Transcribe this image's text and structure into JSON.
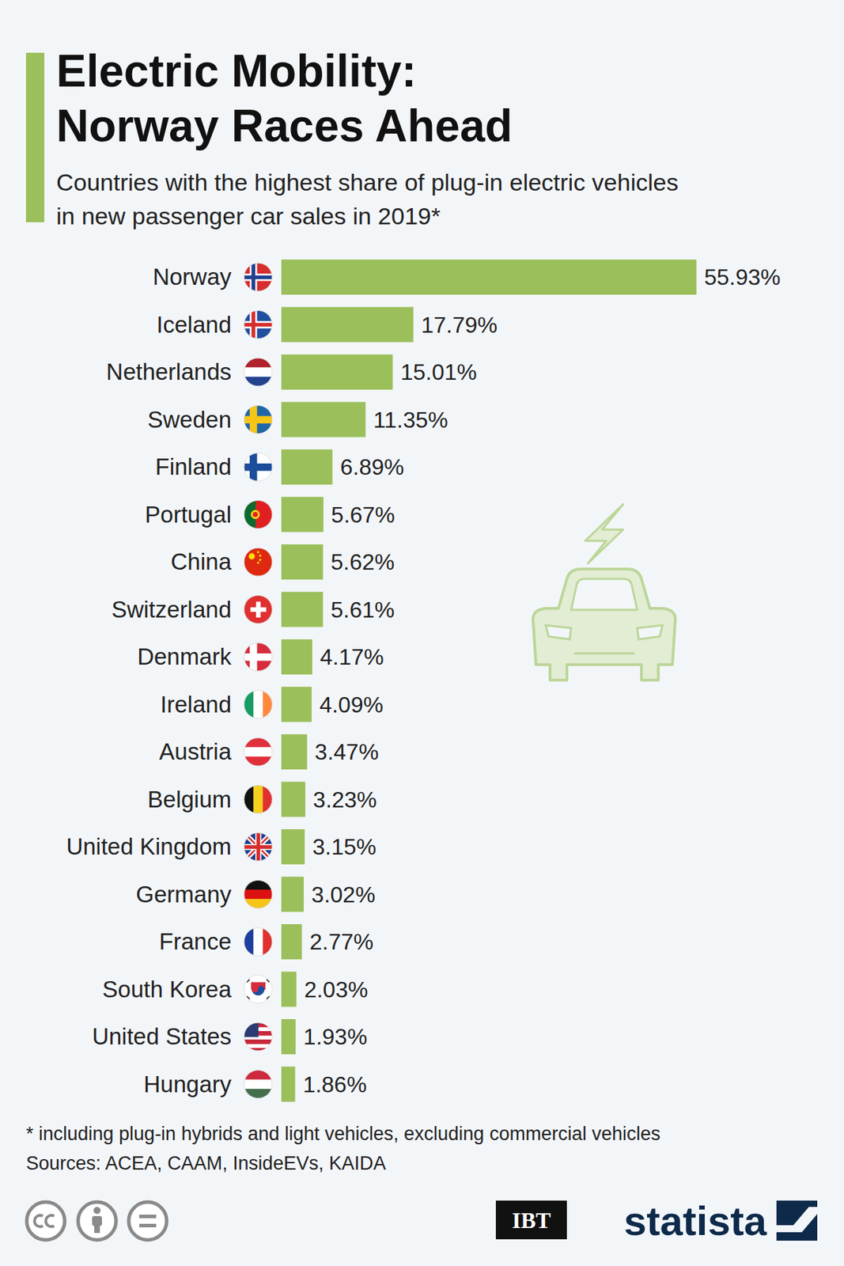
{
  "chart_data": {
    "type": "bar",
    "orientation": "horizontal",
    "title": [
      "Electric Mobility:",
      "Norway Races Ahead"
    ],
    "subtitle": [
      "Countries with the highest share of plug-in electric vehicles",
      "in new passenger car sales in 2019*"
    ],
    "categories": [
      "Norway",
      "Iceland",
      "Netherlands",
      "Sweden",
      "Finland",
      "Portugal",
      "China",
      "Switzerland",
      "Denmark",
      "Ireland",
      "Austria",
      "Belgium",
      "United Kingdom",
      "Germany",
      "France",
      "South Korea",
      "United States",
      "Hungary"
    ],
    "values": [
      55.93,
      17.79,
      15.01,
      11.35,
      6.89,
      5.67,
      5.62,
      5.61,
      4.17,
      4.09,
      3.47,
      3.23,
      3.15,
      3.02,
      2.77,
      2.03,
      1.93,
      1.86
    ],
    "value_labels": [
      "55.93%",
      "17.79%",
      "15.01%",
      "11.35%",
      "6.89%",
      "5.67%",
      "5.62%",
      "5.61%",
      "4.17%",
      "4.09%",
      "3.47%",
      "3.23%",
      "3.15%",
      "3.02%",
      "2.77%",
      "2.03%",
      "1.93%",
      "1.86%"
    ],
    "color": "#9bbf5b",
    "xlim": [
      0,
      56
    ],
    "data_labels": true,
    "grid": false,
    "tick_labels": false,
    "notes": [
      "* including plug-in hybrids and light vehicles, excluding commercial vehicles",
      "Sources: ACEA, CAAM, InsideEVs, KAIDA"
    ],
    "credits": [
      "IBT",
      "statista"
    ]
  }
}
